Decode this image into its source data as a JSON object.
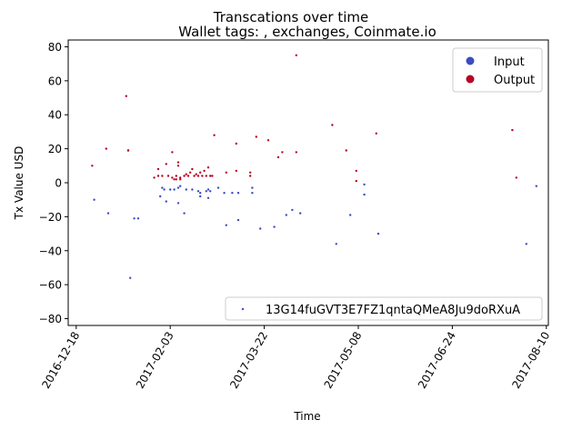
{
  "chart_data": {
    "type": "scatter",
    "title": "Transcations over time",
    "subtitle": "Wallet tags: , exchanges, Coinmate.io",
    "xlabel": "Time",
    "ylabel": "Tx Value USD",
    "xlim": [
      "2016-12-14",
      "2017-08-11"
    ],
    "ylim": [
      -84,
      84
    ],
    "x_ticks": [
      "2016-12-18",
      "2017-02-03",
      "2017-03-22",
      "2017-05-08",
      "2017-06-24",
      "2017-08-10"
    ],
    "y_ticks": [
      -80,
      -60,
      -40,
      -20,
      0,
      20,
      40,
      60,
      80
    ],
    "grid": false,
    "legend_top": {
      "position": "top-right",
      "entries": [
        {
          "label": "Input",
          "color": "#3b4cc0"
        },
        {
          "label": "Output",
          "color": "#b40426"
        }
      ]
    },
    "legend_bottom": {
      "position": "bottom-right",
      "entries": [
        {
          "label": "13G14fuGVT3E7FZ1qntaQMeA8Ju9doRXuA",
          "color": "#3b4cc0"
        }
      ]
    },
    "series": [
      {
        "name": "Input",
        "color": "#3b4cc0",
        "points": [
          {
            "x": "2016-12-27",
            "y": -10
          },
          {
            "x": "2017-01-03",
            "y": -18
          },
          {
            "x": "2017-01-14",
            "y": -56
          },
          {
            "x": "2017-01-16",
            "y": -21
          },
          {
            "x": "2017-01-18",
            "y": -21
          },
          {
            "x": "2017-01-29",
            "y": -8
          },
          {
            "x": "2017-01-30",
            "y": -3
          },
          {
            "x": "2017-01-31",
            "y": -4
          },
          {
            "x": "2017-02-01",
            "y": -11
          },
          {
            "x": "2017-02-03",
            "y": -4
          },
          {
            "x": "2017-02-05",
            "y": -4
          },
          {
            "x": "2017-02-07",
            "y": -3
          },
          {
            "x": "2017-02-08",
            "y": -2
          },
          {
            "x": "2017-02-07",
            "y": -12
          },
          {
            "x": "2017-02-10",
            "y": -18
          },
          {
            "x": "2017-02-11",
            "y": -4
          },
          {
            "x": "2017-02-14",
            "y": -4
          },
          {
            "x": "2017-02-17",
            "y": -5
          },
          {
            "x": "2017-02-18",
            "y": -8
          },
          {
            "x": "2017-02-18",
            "y": -6
          },
          {
            "x": "2017-02-21",
            "y": -5
          },
          {
            "x": "2017-02-22",
            "y": -4
          },
          {
            "x": "2017-02-22",
            "y": -9
          },
          {
            "x": "2017-02-23",
            "y": -5
          },
          {
            "x": "2017-02-27",
            "y": -3
          },
          {
            "x": "2017-03-02",
            "y": -6
          },
          {
            "x": "2017-03-03",
            "y": -25
          },
          {
            "x": "2017-03-06",
            "y": -6
          },
          {
            "x": "2017-03-09",
            "y": -22
          },
          {
            "x": "2017-03-09",
            "y": -6
          },
          {
            "x": "2017-03-16",
            "y": -6
          },
          {
            "x": "2017-03-16",
            "y": -3
          },
          {
            "x": "2017-03-20",
            "y": -27
          },
          {
            "x": "2017-03-27",
            "y": -26
          },
          {
            "x": "2017-04-02",
            "y": -19
          },
          {
            "x": "2017-04-05",
            "y": -16
          },
          {
            "x": "2017-04-09",
            "y": -18
          },
          {
            "x": "2017-04-27",
            "y": -36
          },
          {
            "x": "2017-05-04",
            "y": -19
          },
          {
            "x": "2017-05-11",
            "y": -7
          },
          {
            "x": "2017-05-11",
            "y": -1
          },
          {
            "x": "2017-05-18",
            "y": -30
          },
          {
            "x": "2017-07-31",
            "y": -36
          },
          {
            "x": "2017-08-05",
            "y": -2
          }
        ]
      },
      {
        "name": "Output",
        "color": "#b40426",
        "points": [
          {
            "x": "2016-12-26",
            "y": 10
          },
          {
            "x": "2017-01-02",
            "y": 20
          },
          {
            "x": "2017-01-12",
            "y": 51
          },
          {
            "x": "2017-01-13",
            "y": 19
          },
          {
            "x": "2017-01-13",
            "y": 19
          },
          {
            "x": "2017-01-26",
            "y": 3
          },
          {
            "x": "2017-01-28",
            "y": 8
          },
          {
            "x": "2017-01-28",
            "y": 4
          },
          {
            "x": "2017-01-30",
            "y": 4
          },
          {
            "x": "2017-02-01",
            "y": 11
          },
          {
            "x": "2017-02-02",
            "y": 4
          },
          {
            "x": "2017-02-04",
            "y": 18
          },
          {
            "x": "2017-02-04",
            "y": 3
          },
          {
            "x": "2017-02-05",
            "y": 2
          },
          {
            "x": "2017-02-06",
            "y": 4
          },
          {
            "x": "2017-02-06",
            "y": 2
          },
          {
            "x": "2017-02-07",
            "y": 12
          },
          {
            "x": "2017-02-07",
            "y": 10
          },
          {
            "x": "2017-02-08",
            "y": 3
          },
          {
            "x": "2017-02-08",
            "y": 2
          },
          {
            "x": "2017-02-10",
            "y": 4
          },
          {
            "x": "2017-02-11",
            "y": 5
          },
          {
            "x": "2017-02-12",
            "y": 4
          },
          {
            "x": "2017-02-13",
            "y": 6
          },
          {
            "x": "2017-02-14",
            "y": 8
          },
          {
            "x": "2017-02-15",
            "y": 4
          },
          {
            "x": "2017-02-16",
            "y": 5
          },
          {
            "x": "2017-02-17",
            "y": 4
          },
          {
            "x": "2017-02-18",
            "y": 6
          },
          {
            "x": "2017-02-19",
            "y": 4
          },
          {
            "x": "2017-02-20",
            "y": 7
          },
          {
            "x": "2017-02-21",
            "y": 4
          },
          {
            "x": "2017-02-22",
            "y": 9
          },
          {
            "x": "2017-02-23",
            "y": 4
          },
          {
            "x": "2017-02-24",
            "y": 4
          },
          {
            "x": "2017-02-25",
            "y": 28
          },
          {
            "x": "2017-03-03",
            "y": 6
          },
          {
            "x": "2017-03-08",
            "y": 23
          },
          {
            "x": "2017-03-08",
            "y": 7
          },
          {
            "x": "2017-03-15",
            "y": 6
          },
          {
            "x": "2017-03-15",
            "y": 4
          },
          {
            "x": "2017-03-18",
            "y": 27
          },
          {
            "x": "2017-03-24",
            "y": 25
          },
          {
            "x": "2017-03-29",
            "y": 15
          },
          {
            "x": "2017-03-31",
            "y": 18
          },
          {
            "x": "2017-04-07",
            "y": 75
          },
          {
            "x": "2017-04-07",
            "y": 18
          },
          {
            "x": "2017-04-25",
            "y": 34
          },
          {
            "x": "2017-05-02",
            "y": 19
          },
          {
            "x": "2017-05-07",
            "y": 7
          },
          {
            "x": "2017-05-07",
            "y": 1
          },
          {
            "x": "2017-05-17",
            "y": 29
          },
          {
            "x": "2017-07-24",
            "y": 31
          },
          {
            "x": "2017-07-26",
            "y": 3
          }
        ]
      }
    ]
  }
}
